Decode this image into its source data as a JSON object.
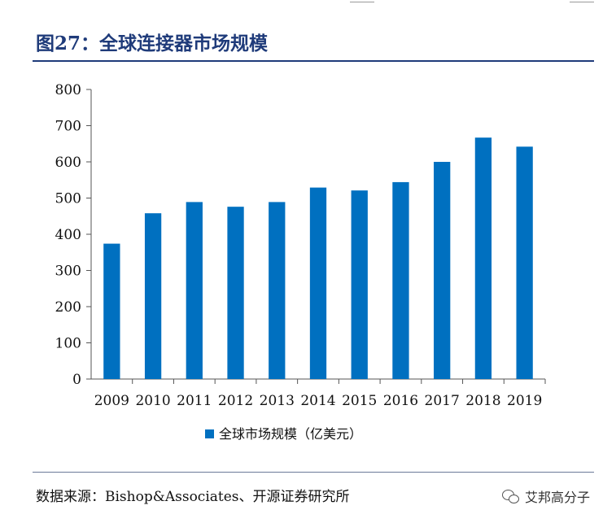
{
  "figure": {
    "title": "图27：全球连接器市场规模",
    "source": "数据来源：Bishop&Associates、开源证券研究所"
  },
  "watermark": {
    "text": "艾邦高分子",
    "icon": "wechat-icon"
  },
  "colors": {
    "bar": "#0070c0",
    "title": "#1f3b7a",
    "axis": "#555555"
  },
  "chart_data": {
    "type": "bar",
    "categories": [
      "2009",
      "2010",
      "2011",
      "2012",
      "2013",
      "2014",
      "2015",
      "2016",
      "2017",
      "2018",
      "2019"
    ],
    "series": [
      {
        "name": "全球市场规模（亿美元）",
        "values": [
          374,
          458,
          489,
          476,
          489,
          529,
          521,
          544,
          600,
          667,
          642
        ]
      }
    ],
    "title": "",
    "xlabel": "",
    "ylabel": "",
    "ylim": [
      0,
      800
    ],
    "yticks": [
      "0",
      "100",
      "200",
      "300",
      "400",
      "500",
      "600",
      "700",
      "800"
    ],
    "legend": "bottom-center",
    "grid": false
  }
}
